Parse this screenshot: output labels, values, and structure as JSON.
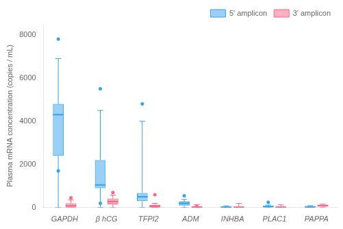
{
  "chart_data": {
    "type": "box",
    "categories": [
      "GAPDH",
      "β hCG",
      "TFPI2",
      "ADM",
      "INHBA",
      "PLAC1",
      "PAPPA"
    ],
    "ylabel": "Plasma mRNA concentration (copies / mL)",
    "ylim": [
      0,
      8500
    ],
    "yticks": [
      0,
      2000,
      4000,
      6000,
      8000
    ],
    "grid": false,
    "legend": "upper right",
    "series": [
      {
        "name": "5' amplicon",
        "values": [
          {
            "whislo": 0,
            "q1": 2400,
            "med": 4300,
            "q3": 4800,
            "whishi": 6900,
            "fliers": [
              7800,
              1700
            ]
          },
          {
            "whislo": 0,
            "q1": 900,
            "med": 1050,
            "q3": 2200,
            "whishi": 4500,
            "fliers": [
              5500,
              200
            ]
          },
          {
            "whislo": 0,
            "q1": 300,
            "med": 500,
            "q3": 680,
            "whishi": 4000,
            "fliers": [
              4800
            ]
          },
          {
            "whislo": 0,
            "q1": 100,
            "med": 190,
            "q3": 280,
            "whishi": 380,
            "fliers": [
              550
            ]
          },
          {
            "whislo": 0,
            "q1": 0,
            "med": 20,
            "q3": 50,
            "whishi": 80,
            "fliers": []
          },
          {
            "whislo": 0,
            "q1": 20,
            "med": 50,
            "q3": 80,
            "whishi": 120,
            "fliers": [
              250
            ]
          },
          {
            "whislo": 0,
            "q1": 0,
            "med": 30,
            "q3": 60,
            "whishi": 90,
            "fliers": []
          }
        ]
      },
      {
        "name": "3' amplicon",
        "values": [
          {
            "whislo": 0,
            "q1": 0,
            "med": 80,
            "q3": 200,
            "whishi": 350,
            "fliers": [
              450
            ]
          },
          {
            "whislo": 0,
            "q1": 150,
            "med": 280,
            "q3": 420,
            "whishi": 580,
            "fliers": [
              700
            ]
          },
          {
            "whislo": 0,
            "q1": 0,
            "med": 50,
            "q3": 120,
            "whishi": 200,
            "fliers": [
              600
            ]
          },
          {
            "whislo": 0,
            "q1": 0,
            "med": 20,
            "q3": 60,
            "whishi": 140,
            "fliers": [
              50
            ]
          },
          {
            "whislo": 0,
            "q1": 0,
            "med": 20,
            "q3": 50,
            "whishi": 200,
            "fliers": []
          },
          {
            "whislo": 0,
            "q1": 0,
            "med": 20,
            "q3": 50,
            "whishi": 130,
            "fliers": []
          },
          {
            "whislo": 0,
            "q1": 40,
            "med": 90,
            "q3": 140,
            "whishi": 160,
            "fliers": []
          }
        ]
      }
    ]
  }
}
